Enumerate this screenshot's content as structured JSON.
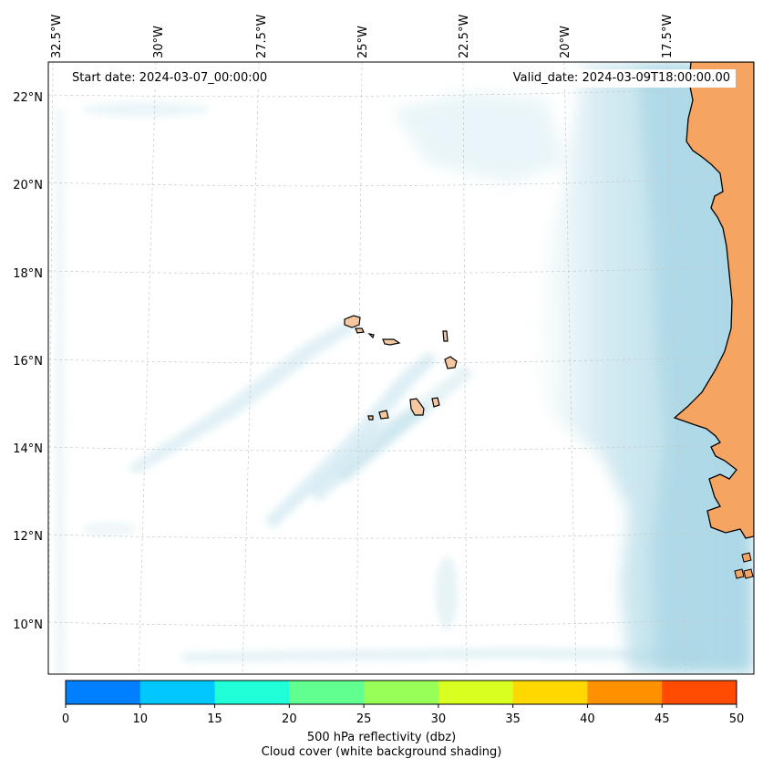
{
  "map": {
    "start_date": "Start date: 2024-03-07_00:00:00",
    "valid_date": "Valid_date: 2024-03-09T18:00:00.00",
    "lon_labels": [
      "32.5°W",
      "30°W",
      "27.5°W",
      "25°W",
      "22.5°W",
      "20°W",
      "17.5°W"
    ],
    "lat_labels": [
      "22°N",
      "20°N",
      "18°N",
      "16°N",
      "14°N",
      "12°N",
      "10°N"
    ],
    "colors": {
      "land": "#f5a462",
      "island": "#f7c8a0",
      "cloud": "#add8e6",
      "coastline": "#000000",
      "gridline": "#c8c8c8"
    }
  },
  "colorbar": {
    "label_line1": "500 hPa reflectivity (dbz)",
    "label_line2": "Cloud cover (white background shading)",
    "ticks": [
      "0",
      "10",
      "15",
      "20",
      "25",
      "30",
      "35",
      "40",
      "45",
      "50"
    ],
    "colors": [
      "#0080ff",
      "#00c8ff",
      "#20ffd8",
      "#60ff90",
      "#98ff58",
      "#d8ff20",
      "#ffd800",
      "#ff9000",
      "#ff4c00"
    ]
  }
}
